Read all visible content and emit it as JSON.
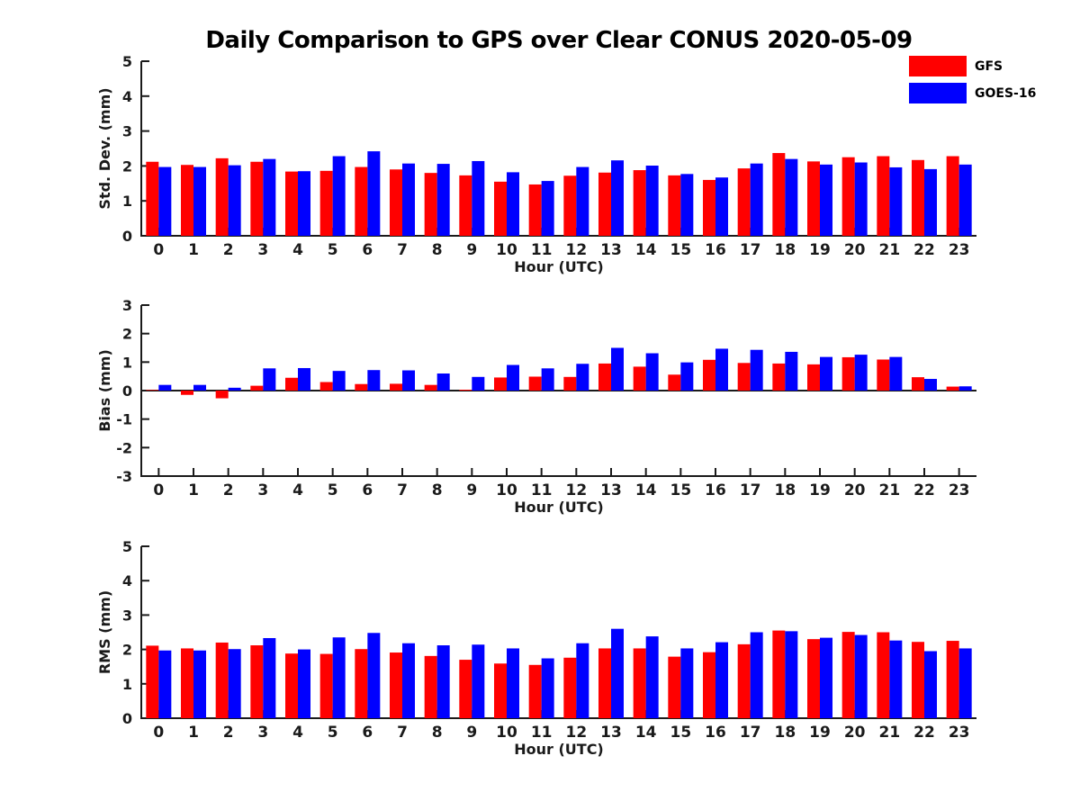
{
  "title": "Daily Comparison to GPS over Clear CONUS 2020-05-09",
  "legend": {
    "entries": [
      {
        "label": "GFS",
        "color": "#ff0000"
      },
      {
        "label": "GOES-16",
        "color": "#0000ff"
      }
    ]
  },
  "colors": {
    "gfs": "#ff0000",
    "goes16": "#0000ff",
    "axis": "#1a1a1a"
  },
  "chart_data": [
    {
      "type": "bar",
      "name": "std-dev",
      "ylabel": "Std. Dev. (mm)",
      "xlabel": "Hour (UTC)",
      "ylim": [
        0,
        5
      ],
      "yticks": [
        0,
        1,
        2,
        3,
        4,
        5
      ],
      "grid": false,
      "categories": [
        "0",
        "1",
        "2",
        "3",
        "4",
        "5",
        "6",
        "7",
        "8",
        "9",
        "10",
        "11",
        "12",
        "13",
        "14",
        "15",
        "16",
        "17",
        "18",
        "19",
        "20",
        "21",
        "22",
        "23"
      ],
      "series": [
        {
          "name": "GFS",
          "color": "#ff0000",
          "values": [
            2.12,
            2.03,
            2.22,
            2.12,
            1.84,
            1.86,
            1.97,
            1.9,
            1.8,
            1.73,
            1.55,
            1.47,
            1.72,
            1.81,
            1.88,
            1.73,
            1.6,
            1.93,
            2.37,
            2.13,
            2.25,
            2.28,
            2.17,
            2.28
          ]
        },
        {
          "name": "GOES-16",
          "color": "#0000ff",
          "values": [
            1.97,
            1.97,
            2.02,
            2.2,
            1.85,
            2.28,
            2.42,
            2.07,
            2.06,
            2.14,
            1.82,
            1.57,
            1.97,
            2.16,
            2.01,
            1.77,
            1.67,
            2.07,
            2.2,
            2.04,
            2.1,
            1.96,
            1.91,
            2.04
          ]
        }
      ]
    },
    {
      "type": "bar",
      "name": "bias",
      "ylabel": "Bias (mm)",
      "xlabel": "Hour (UTC)",
      "ylim": [
        -3,
        3
      ],
      "yticks": [
        -3,
        -2,
        -1,
        0,
        1,
        2,
        3
      ],
      "grid": false,
      "categories": [
        "0",
        "1",
        "2",
        "3",
        "4",
        "5",
        "6",
        "7",
        "8",
        "9",
        "10",
        "11",
        "12",
        "13",
        "14",
        "15",
        "16",
        "17",
        "18",
        "19",
        "20",
        "21",
        "22",
        "23"
      ],
      "series": [
        {
          "name": "GFS",
          "color": "#ff0000",
          "values": [
            0.02,
            -0.15,
            -0.27,
            0.17,
            0.45,
            0.3,
            0.23,
            0.24,
            0.2,
            0.03,
            0.46,
            0.49,
            0.48,
            0.95,
            0.84,
            0.56,
            1.08,
            0.97,
            0.95,
            0.92,
            1.17,
            1.09,
            0.47,
            0.14
          ]
        },
        {
          "name": "GOES-16",
          "color": "#0000ff",
          "values": [
            0.2,
            0.2,
            0.1,
            0.78,
            0.79,
            0.69,
            0.72,
            0.71,
            0.6,
            0.48,
            0.9,
            0.78,
            0.94,
            1.5,
            1.31,
            0.99,
            1.47,
            1.43,
            1.36,
            1.18,
            1.26,
            1.18,
            0.41,
            0.15
          ]
        }
      ]
    },
    {
      "type": "bar",
      "name": "rms",
      "ylabel": "RMS (mm)",
      "xlabel": "Hour (UTC)",
      "ylim": [
        0,
        5
      ],
      "yticks": [
        0,
        1,
        2,
        3,
        4,
        5
      ],
      "grid": false,
      "categories": [
        "0",
        "1",
        "2",
        "3",
        "4",
        "5",
        "6",
        "7",
        "8",
        "9",
        "10",
        "11",
        "12",
        "13",
        "14",
        "15",
        "16",
        "17",
        "18",
        "19",
        "20",
        "21",
        "22",
        "23"
      ],
      "series": [
        {
          "name": "GFS",
          "color": "#ff0000",
          "values": [
            2.11,
            2.03,
            2.2,
            2.12,
            1.88,
            1.87,
            2.01,
            1.91,
            1.81,
            1.7,
            1.59,
            1.55,
            1.76,
            2.03,
            2.03,
            1.79,
            1.92,
            2.15,
            2.55,
            2.3,
            2.51,
            2.5,
            2.22,
            2.25
          ]
        },
        {
          "name": "GOES-16",
          "color": "#0000ff",
          "values": [
            1.97,
            1.97,
            2.01,
            2.33,
            2.0,
            2.35,
            2.48,
            2.18,
            2.12,
            2.14,
            2.03,
            1.74,
            2.18,
            2.6,
            2.38,
            2.03,
            2.21,
            2.5,
            2.53,
            2.34,
            2.42,
            2.26,
            1.95,
            2.03
          ]
        }
      ]
    }
  ]
}
